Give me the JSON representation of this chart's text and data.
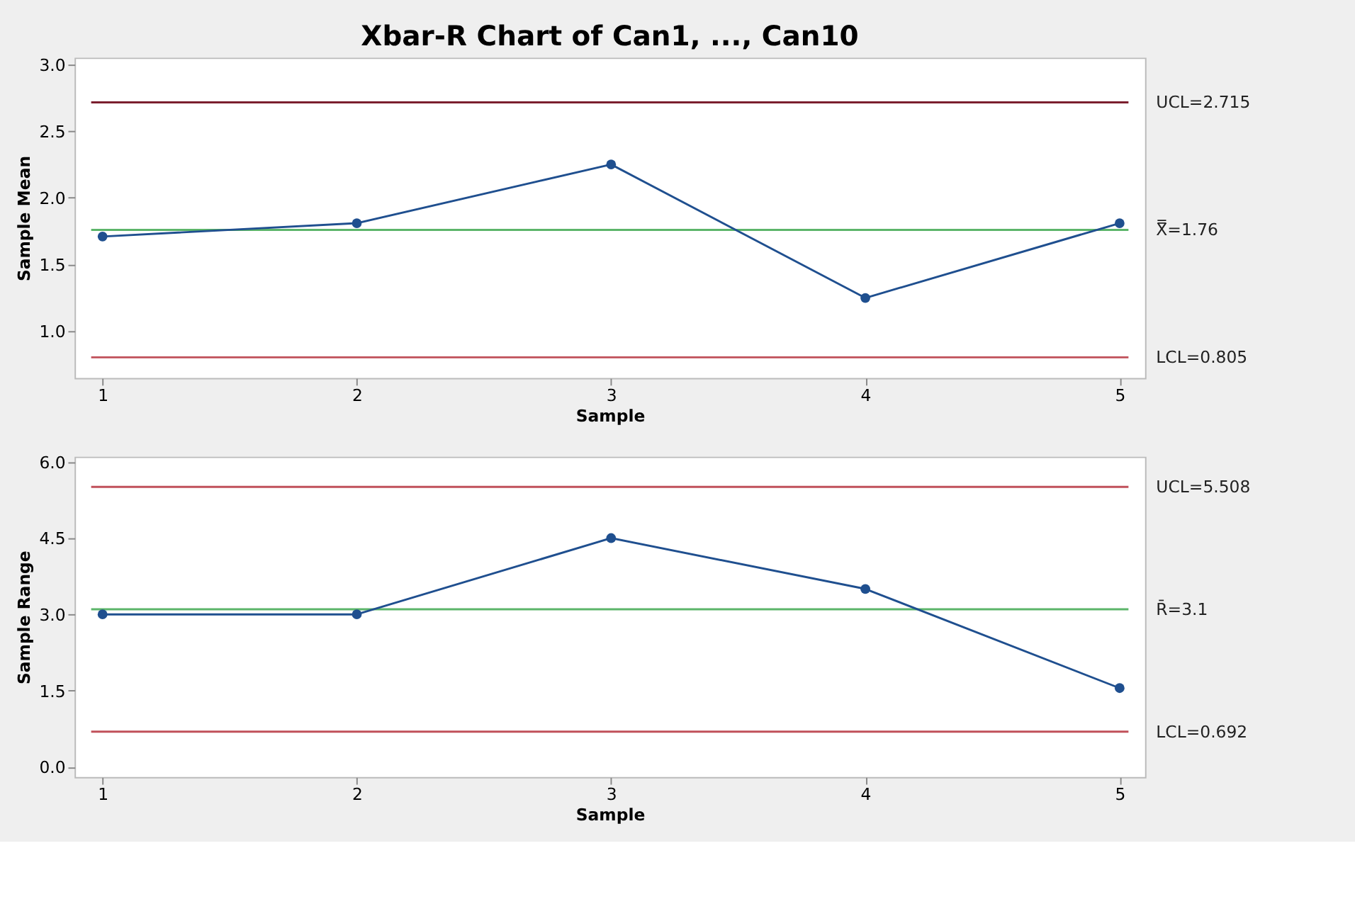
{
  "chart_data": [
    {
      "type": "line",
      "title": "Xbar-R Chart of Can1, ..., Can10",
      "xlabel": "Sample",
      "ylabel": "Sample Mean",
      "x": [
        1,
        2,
        3,
        4,
        5
      ],
      "series": [
        {
          "color": "#1f4f8f",
          "values": [
            1.71,
            1.81,
            2.25,
            1.25,
            1.81
          ]
        }
      ],
      "xlim": [
        0.89,
        5.1
      ],
      "xticks": [
        1,
        2,
        3,
        4,
        5
      ],
      "ylim": [
        0.65,
        3.05
      ],
      "yticks": [
        {
          "value": 1,
          "label": "1.0"
        },
        1.5,
        {
          "value": 2,
          "label": "2.0"
        },
        2.5,
        {
          "value": 3,
          "label": "3.0"
        }
      ],
      "grid": false,
      "marker": "circle",
      "line_style": "solid",
      "ref_lines": [
        {
          "axis": "y",
          "value": 2.715,
          "label": "UCL=2.715",
          "color": "#7b1f2e"
        },
        {
          "axis": "y",
          "value": 1.76,
          "label": "X̿=1.76",
          "color": "#5cb56a"
        },
        {
          "axis": "y",
          "value": 0.805,
          "label": "LCL=0.805",
          "color": "#c0505a"
        }
      ]
    },
    {
      "type": "line",
      "xlabel": "Sample",
      "ylabel": "Sample Range",
      "x": [
        1,
        2,
        3,
        4,
        5
      ],
      "series": [
        {
          "color": "#1f4f8f",
          "values": [
            3.0,
            3.0,
            4.5,
            3.5,
            1.55
          ]
        }
      ],
      "xlim": [
        0.89,
        5.1
      ],
      "xticks": [
        1,
        2,
        3,
        4,
        5
      ],
      "ylim": [
        -0.2,
        6.1
      ],
      "yticks": [
        {
          "value": 0,
          "label": "0.0"
        },
        1.5,
        {
          "value": 3,
          "label": "3.0"
        },
        4.5,
        {
          "value": 6,
          "label": "6.0"
        }
      ],
      "grid": false,
      "marker": "circle",
      "line_style": "solid",
      "ref_lines": [
        {
          "axis": "y",
          "value": 5.508,
          "label": "UCL=5.508",
          "color": "#c0505a"
        },
        {
          "axis": "y",
          "value": 3.1,
          "label": "R̄=3.1",
          "color": "#5cb56a"
        },
        {
          "axis": "y",
          "value": 0.692,
          "label": "LCL=0.692",
          "color": "#c0505a"
        }
      ]
    }
  ]
}
